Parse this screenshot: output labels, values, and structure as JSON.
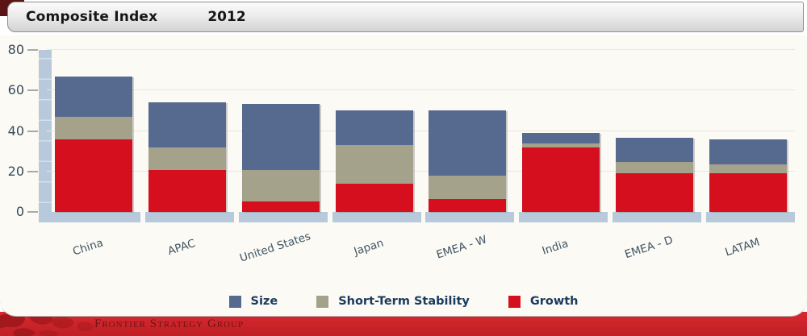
{
  "title_bar": {
    "title": "Composite Index",
    "year": "2012"
  },
  "chart_data": {
    "type": "bar",
    "stacked": true,
    "title": "Composite Index 2012",
    "categories": [
      "China",
      "APAC",
      "United States",
      "Japan",
      "EMEA - W",
      "India",
      "EMEA - D",
      "LATAM"
    ],
    "series": [
      {
        "name": "Size",
        "color": "#56698e",
        "values": [
          20,
          22,
          33,
          17,
          32,
          5,
          12,
          12.5
        ]
      },
      {
        "name": "Short-Term Stability",
        "color": "#a5a28b",
        "values": [
          11,
          11.5,
          15.5,
          19,
          11.5,
          2,
          5.5,
          4.5
        ]
      },
      {
        "name": "Growth",
        "color": "#d60f1f",
        "values": [
          36,
          20.5,
          5,
          14,
          6.5,
          32,
          19,
          19
        ]
      }
    ],
    "totals": [
      67,
      54,
      53.5,
      50,
      50,
      39,
      36.5,
      35.5
    ],
    "stack_order_bottom_to_top": [
      "Growth",
      "Short-Term Stability",
      "Size"
    ],
    "ylim": [
      0,
      80
    ],
    "yticks": [
      0,
      20,
      40,
      60,
      80
    ],
    "grid": true,
    "legend_position": "bottom"
  },
  "legend": {
    "items": [
      {
        "label": "Size",
        "color": "#56698e"
      },
      {
        "label": "Short-Term Stability",
        "color": "#a5a28b"
      },
      {
        "label": "Growth",
        "color": "#d60f1f"
      }
    ]
  },
  "footer": {
    "brand": "Frontier Strategy Group"
  },
  "colors": {
    "axis_band": "#b9c9dc",
    "pedestal": "#b9c9dc",
    "gridline": "#e9e6de",
    "tick_text": "#36495a",
    "legend_text": "#1a3a5e",
    "footer_red": "#c9242a",
    "footer_map_red": "#9e171c",
    "footer_text": "#6e1315",
    "corner_accent": "#5c1315",
    "card_background": "#fbfaf4"
  }
}
